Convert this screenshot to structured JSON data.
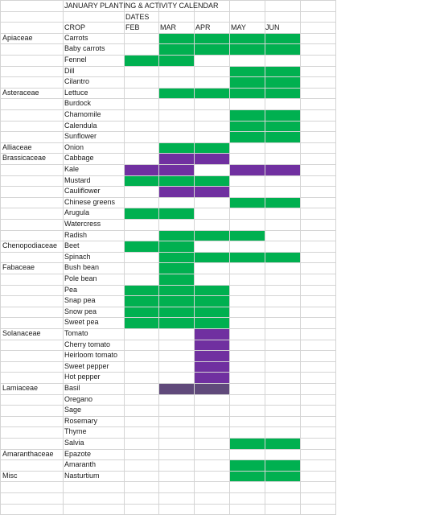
{
  "title": "JANUARY PLANTING & ACTIVITY CALENDAR",
  "dates_label": "DATES",
  "crop_header": "CROP",
  "months": [
    "FEB",
    "MAR",
    "APR",
    "MAY",
    "JUN"
  ],
  "colors": {
    "green": "#00b050",
    "purple": "#7030a0",
    "gray_purple": "#604a7b",
    "grid": "#d4d4d4"
  },
  "families": [
    {
      "row": 3,
      "name": "Apiaceae"
    },
    {
      "row": 8,
      "name": "Asteraceae"
    },
    {
      "row": 13,
      "name": "Alliaceae"
    },
    {
      "row": 14,
      "name": "Brassicaceae"
    },
    {
      "row": 22,
      "name": "Chenopodiaceae"
    },
    {
      "row": 24,
      "name": "Fabaceae"
    },
    {
      "row": 30,
      "name": "Solanaceae"
    },
    {
      "row": 35,
      "name": "Lamiaceae"
    },
    {
      "row": 41,
      "name": "Amaranthaceae"
    },
    {
      "row": 43,
      "name": "Misc"
    }
  ],
  "crops": [
    "Carrots",
    "Baby carrots",
    "Fennel",
    "Dill",
    "Cilantro",
    "Lettuce",
    "Burdock",
    "Chamomile",
    "Calendula",
    "Sunflower",
    "Onion",
    "Cabbage",
    "Kale",
    "Mustard",
    "Cauliflower",
    "Chinese greens",
    "Arugula",
    "Watercress",
    "Radish",
    "Beet",
    "Spinach",
    "Bush bean",
    "Pole bean",
    "Pea",
    "Snap pea",
    "Snow pea",
    "Sweet pea",
    "Tomato",
    "Cherry tomato",
    "Heirloom tomato",
    "Sweet pepper",
    "Hot pepper",
    "Basil",
    "Oregano",
    "Sage",
    "Rosemary",
    "Thyme",
    "Salvia",
    "Epazote",
    "Amaranth",
    "Nasturtium"
  ],
  "fills": [
    {
      "crop": "Carrots",
      "from": 1,
      "to": 4,
      "color": "green"
    },
    {
      "crop": "Baby carrots",
      "from": 1,
      "to": 4,
      "color": "green"
    },
    {
      "crop": "Fennel",
      "from": 0,
      "to": 1,
      "color": "green"
    },
    {
      "crop": "Dill",
      "from": 3,
      "to": 4,
      "color": "green"
    },
    {
      "crop": "Cilantro",
      "from": 3,
      "to": 4,
      "color": "green"
    },
    {
      "crop": "Lettuce",
      "from": 1,
      "to": 4,
      "color": "green"
    },
    {
      "crop": "Chamomile",
      "from": 3,
      "to": 4,
      "color": "green"
    },
    {
      "crop": "Calendula",
      "from": 3,
      "to": 4,
      "color": "green"
    },
    {
      "crop": "Sunflower",
      "from": 3,
      "to": 4,
      "color": "green"
    },
    {
      "crop": "Onion",
      "from": 1,
      "to": 2,
      "color": "green"
    },
    {
      "crop": "Cabbage",
      "from": 1,
      "to": 2,
      "color": "purple"
    },
    {
      "crop": "Kale",
      "from": 0,
      "to": 1,
      "color": "purple"
    },
    {
      "crop": "Kale",
      "from": 3,
      "to": 4,
      "color": "purple"
    },
    {
      "crop": "Mustard",
      "from": 0,
      "to": 2,
      "color": "green"
    },
    {
      "crop": "Cauliflower",
      "from": 1,
      "to": 2,
      "color": "purple"
    },
    {
      "crop": "Chinese greens",
      "from": 3,
      "to": 4,
      "color": "green"
    },
    {
      "crop": "Arugula",
      "from": 0,
      "to": 1,
      "color": "green"
    },
    {
      "crop": "Radish",
      "from": 1,
      "to": 3,
      "color": "green"
    },
    {
      "crop": "Beet",
      "from": 0,
      "to": 0,
      "color": "green"
    },
    {
      "crop": "Beet",
      "from": 1,
      "to": 1,
      "color": "green"
    },
    {
      "crop": "Spinach",
      "from": 1,
      "to": 1,
      "color": "green"
    },
    {
      "crop": "Spinach",
      "from": 2,
      "to": 4,
      "color": "green"
    },
    {
      "crop": "Bush bean",
      "from": 1,
      "to": 1,
      "color": "green"
    },
    {
      "crop": "Pole bean",
      "from": 1,
      "to": 1,
      "color": "green"
    },
    {
      "crop": "Pea",
      "from": 0,
      "to": 2,
      "color": "green"
    },
    {
      "crop": "Snap pea",
      "from": 0,
      "to": 2,
      "color": "green"
    },
    {
      "crop": "Snow pea",
      "from": 0,
      "to": 2,
      "color": "green"
    },
    {
      "crop": "Sweet pea",
      "from": 0,
      "to": 2,
      "color": "green"
    },
    {
      "crop": "Tomato",
      "from": 2,
      "to": 2,
      "color": "purple"
    },
    {
      "crop": "Cherry tomato",
      "from": 2,
      "to": 2,
      "color": "purple"
    },
    {
      "crop": "Heirloom tomato",
      "from": 2,
      "to": 2,
      "color": "purple"
    },
    {
      "crop": "Sweet pepper",
      "from": 2,
      "to": 2,
      "color": "purple"
    },
    {
      "crop": "Hot pepper",
      "from": 2,
      "to": 2,
      "color": "purple"
    },
    {
      "crop": "Basil",
      "from": 1,
      "to": 2,
      "color": "gray_purple"
    },
    {
      "crop": "Salvia",
      "from": 3,
      "to": 4,
      "color": "green"
    },
    {
      "crop": "Amaranth",
      "from": 3,
      "to": 4,
      "color": "green"
    },
    {
      "crop": "Nasturtium",
      "from": 3,
      "to": 4,
      "color": "green"
    }
  ]
}
